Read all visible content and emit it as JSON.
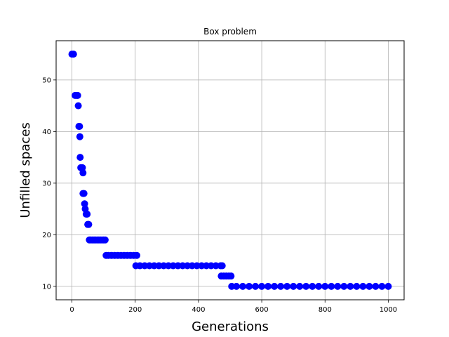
{
  "chart_data": {
    "type": "scatter",
    "title": "Box problem",
    "xlabel": "Generations",
    "ylabel": "Unfilled spaces",
    "xlim": [
      -50,
      1050
    ],
    "ylim": [
      7.4,
      57.6
    ],
    "xticks": [
      0,
      200,
      400,
      600,
      800,
      1000
    ],
    "yticks": [
      10,
      20,
      30,
      40,
      50
    ],
    "grid": true,
    "marker_color": "#0000ff",
    "series": [
      {
        "points": [
          [
            0,
            55
          ],
          [
            5,
            55
          ],
          [
            10,
            47
          ],
          [
            15,
            47
          ],
          [
            18,
            47
          ],
          [
            20,
            45
          ],
          [
            22,
            41
          ],
          [
            24,
            41
          ],
          [
            25,
            39
          ],
          [
            26,
            35
          ],
          [
            28,
            33
          ],
          [
            30,
            33
          ],
          [
            33,
            33
          ],
          [
            35,
            32
          ],
          [
            35,
            28
          ],
          [
            38,
            28
          ],
          [
            40,
            26
          ],
          [
            42,
            25
          ],
          [
            45,
            24
          ],
          [
            48,
            24
          ],
          [
            50,
            22
          ],
          [
            53,
            22
          ],
          [
            55,
            19
          ],
          [
            60,
            19
          ],
          [
            65,
            19
          ],
          [
            70,
            19
          ],
          [
            75,
            19
          ],
          [
            80,
            19
          ],
          [
            85,
            19
          ],
          [
            90,
            19
          ],
          [
            95,
            19
          ],
          [
            100,
            19
          ],
          [
            105,
            19
          ],
          [
            108,
            16
          ],
          [
            115,
            16
          ],
          [
            125,
            16
          ],
          [
            135,
            16
          ],
          [
            145,
            16
          ],
          [
            155,
            16
          ],
          [
            165,
            16
          ],
          [
            175,
            16
          ],
          [
            185,
            16
          ],
          [
            195,
            16
          ],
          [
            205,
            16
          ],
          [
            202,
            14
          ],
          [
            215,
            14
          ],
          [
            230,
            14
          ],
          [
            245,
            14
          ],
          [
            260,
            14
          ],
          [
            275,
            14
          ],
          [
            290,
            14
          ],
          [
            305,
            14
          ],
          [
            320,
            14
          ],
          [
            335,
            14
          ],
          [
            350,
            14
          ],
          [
            365,
            14
          ],
          [
            380,
            14
          ],
          [
            395,
            14
          ],
          [
            410,
            14
          ],
          [
            425,
            14
          ],
          [
            440,
            14
          ],
          [
            455,
            14
          ],
          [
            470,
            14
          ],
          [
            475,
            14
          ],
          [
            472,
            12
          ],
          [
            480,
            12
          ],
          [
            488,
            12
          ],
          [
            496,
            12
          ],
          [
            503,
            12
          ],
          [
            505,
            10
          ],
          [
            520,
            10
          ],
          [
            540,
            10
          ],
          [
            560,
            10
          ],
          [
            580,
            10
          ],
          [
            600,
            10
          ],
          [
            620,
            10
          ],
          [
            640,
            10
          ],
          [
            660,
            10
          ],
          [
            680,
            10
          ],
          [
            700,
            10
          ],
          [
            720,
            10
          ],
          [
            740,
            10
          ],
          [
            760,
            10
          ],
          [
            780,
            10
          ],
          [
            800,
            10
          ],
          [
            820,
            10
          ],
          [
            840,
            10
          ],
          [
            860,
            10
          ],
          [
            880,
            10
          ],
          [
            900,
            10
          ],
          [
            920,
            10
          ],
          [
            940,
            10
          ],
          [
            960,
            10
          ],
          [
            980,
            10
          ],
          [
            1000,
            10
          ]
        ]
      }
    ]
  }
}
